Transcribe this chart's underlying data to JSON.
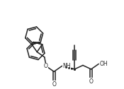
{
  "bg_color": "#ffffff",
  "line_color": "#222222",
  "line_width": 1.1,
  "figsize": [
    1.75,
    1.26
  ],
  "dpi": 100,
  "xlim": [
    0,
    175
  ],
  "ylim": [
    0,
    126
  ]
}
